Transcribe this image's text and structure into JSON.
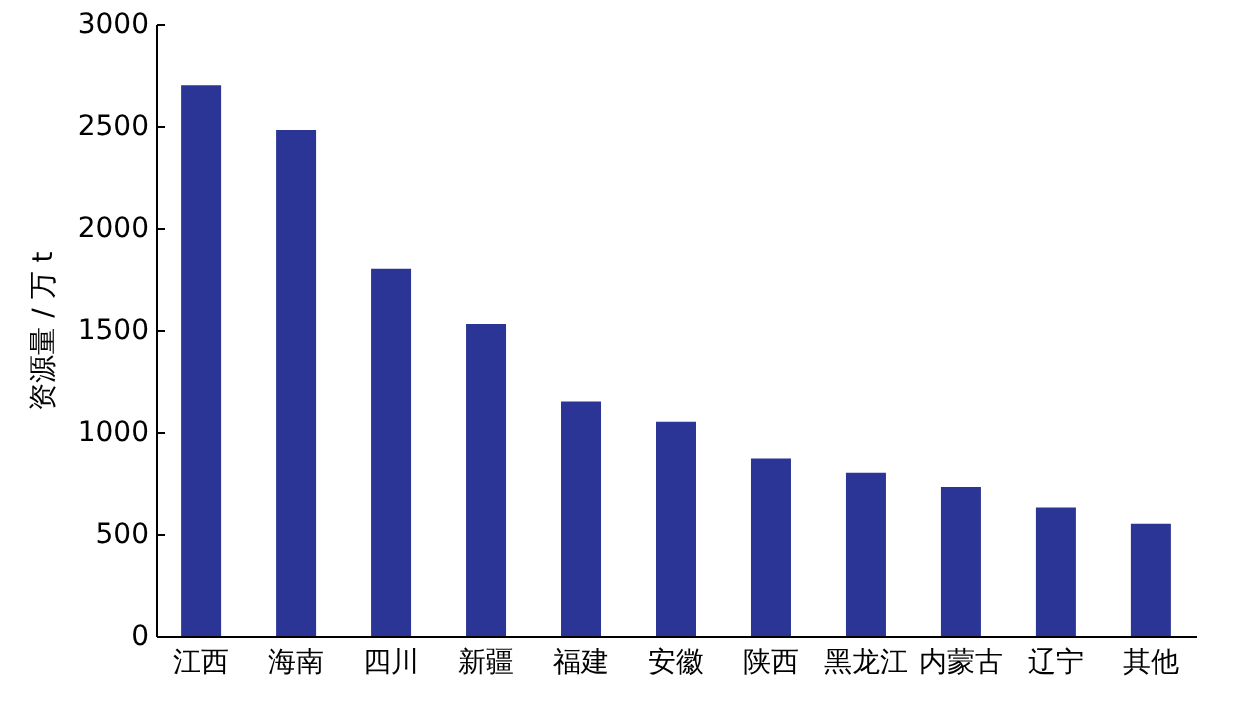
{
  "chart_data": {
    "type": "bar",
    "ylabel": "资源量 / 万 t",
    "categories": [
      "江西",
      "海南",
      "四川",
      "新疆",
      "福建",
      "安徽",
      "陕西",
      "黑龙江",
      "内蒙古",
      "辽宁",
      "其他"
    ],
    "values": [
      2700,
      2480,
      1800,
      1530,
      1150,
      1050,
      870,
      800,
      730,
      630,
      550
    ],
    "color": "#2b3595",
    "ylim": [
      0,
      3000
    ],
    "yticks": [
      0,
      500,
      1000,
      1500,
      2000,
      2500,
      3000
    ],
    "grid": false
  }
}
